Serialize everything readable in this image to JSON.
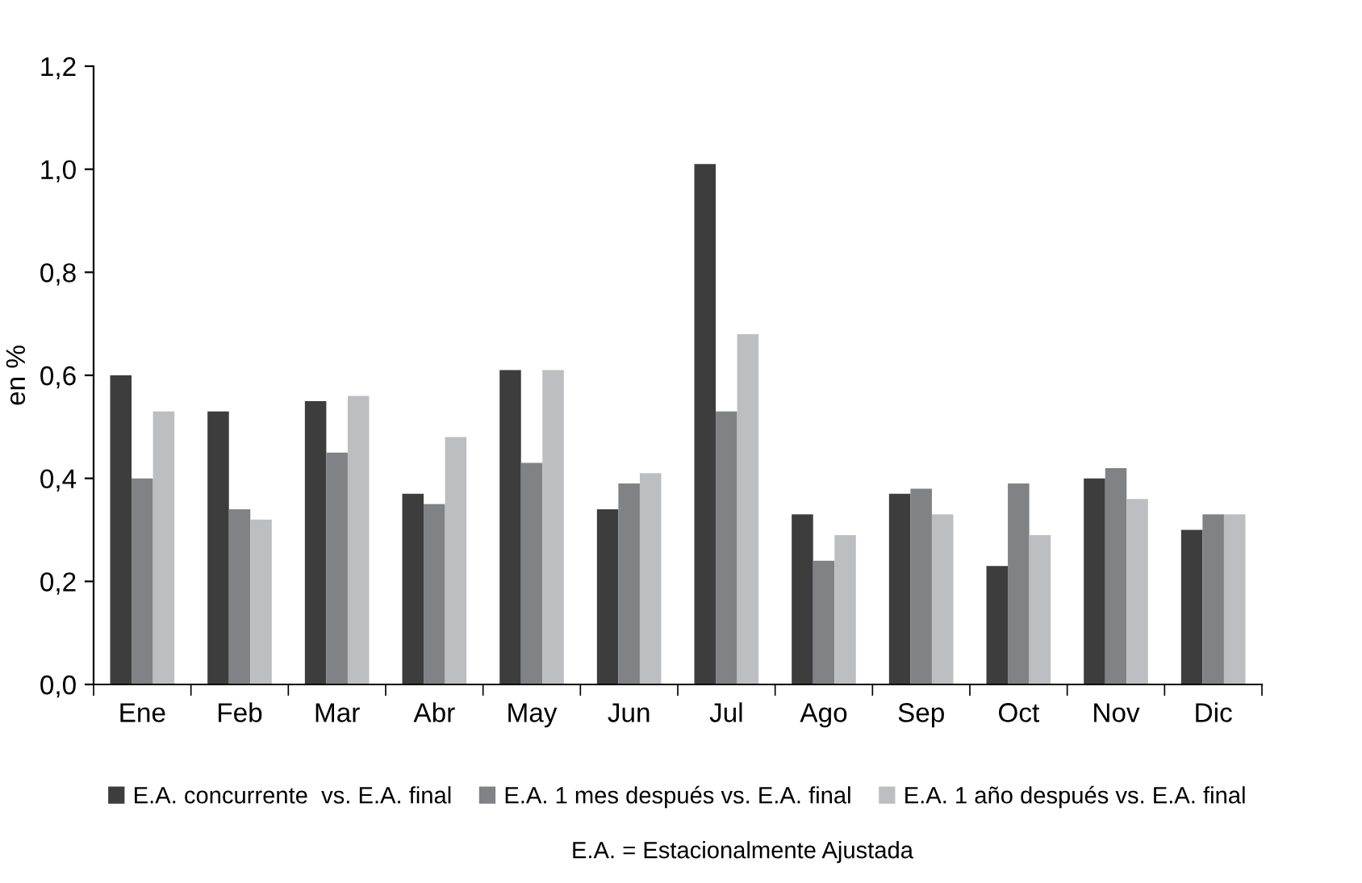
{
  "chart_data": {
    "type": "bar",
    "ylabel": "en %",
    "categories": [
      "Ene",
      "Feb",
      "Mar",
      "Abr",
      "May",
      "Jun",
      "Jul",
      "Ago",
      "Sep",
      "Oct",
      "Nov",
      "Dic"
    ],
    "series": [
      {
        "name": "E.A. concurrente  vs. E.A. final",
        "color": "#3d3d3d",
        "values": [
          0.6,
          0.53,
          0.55,
          0.37,
          0.61,
          0.34,
          1.01,
          0.33,
          0.37,
          0.23,
          0.4,
          0.3
        ]
      },
      {
        "name": "E.A. 1 mes después vs. E.A. final",
        "color": "#818286",
        "values": [
          0.4,
          0.34,
          0.45,
          0.35,
          0.43,
          0.39,
          0.53,
          0.24,
          0.38,
          0.39,
          0.42,
          0.33
        ]
      },
      {
        "name": "E.A. 1 año después vs. E.A. final",
        "color": "#bdbec2",
        "values": [
          0.53,
          0.32,
          0.56,
          0.48,
          0.61,
          0.41,
          0.68,
          0.29,
          0.33,
          0.29,
          0.36,
          0.33
        ]
      }
    ],
    "ylim": [
      0,
      1.2
    ],
    "yticks": [
      {
        "value": 0,
        "label": "0,0"
      },
      {
        "value": 0.2,
        "label": "0,2"
      },
      {
        "value": 0.4,
        "label": "0,4"
      },
      {
        "value": 0.6,
        "label": "0,6"
      },
      {
        "value": 0.8,
        "label": "0,8"
      },
      {
        "value": 1.0,
        "label": "1,0"
      },
      {
        "value": 1.2,
        "label": "1,2"
      }
    ],
    "grid": false,
    "legend": "bottom",
    "annotations": [
      "E.A. = Estacionalmente Ajustada"
    ]
  }
}
